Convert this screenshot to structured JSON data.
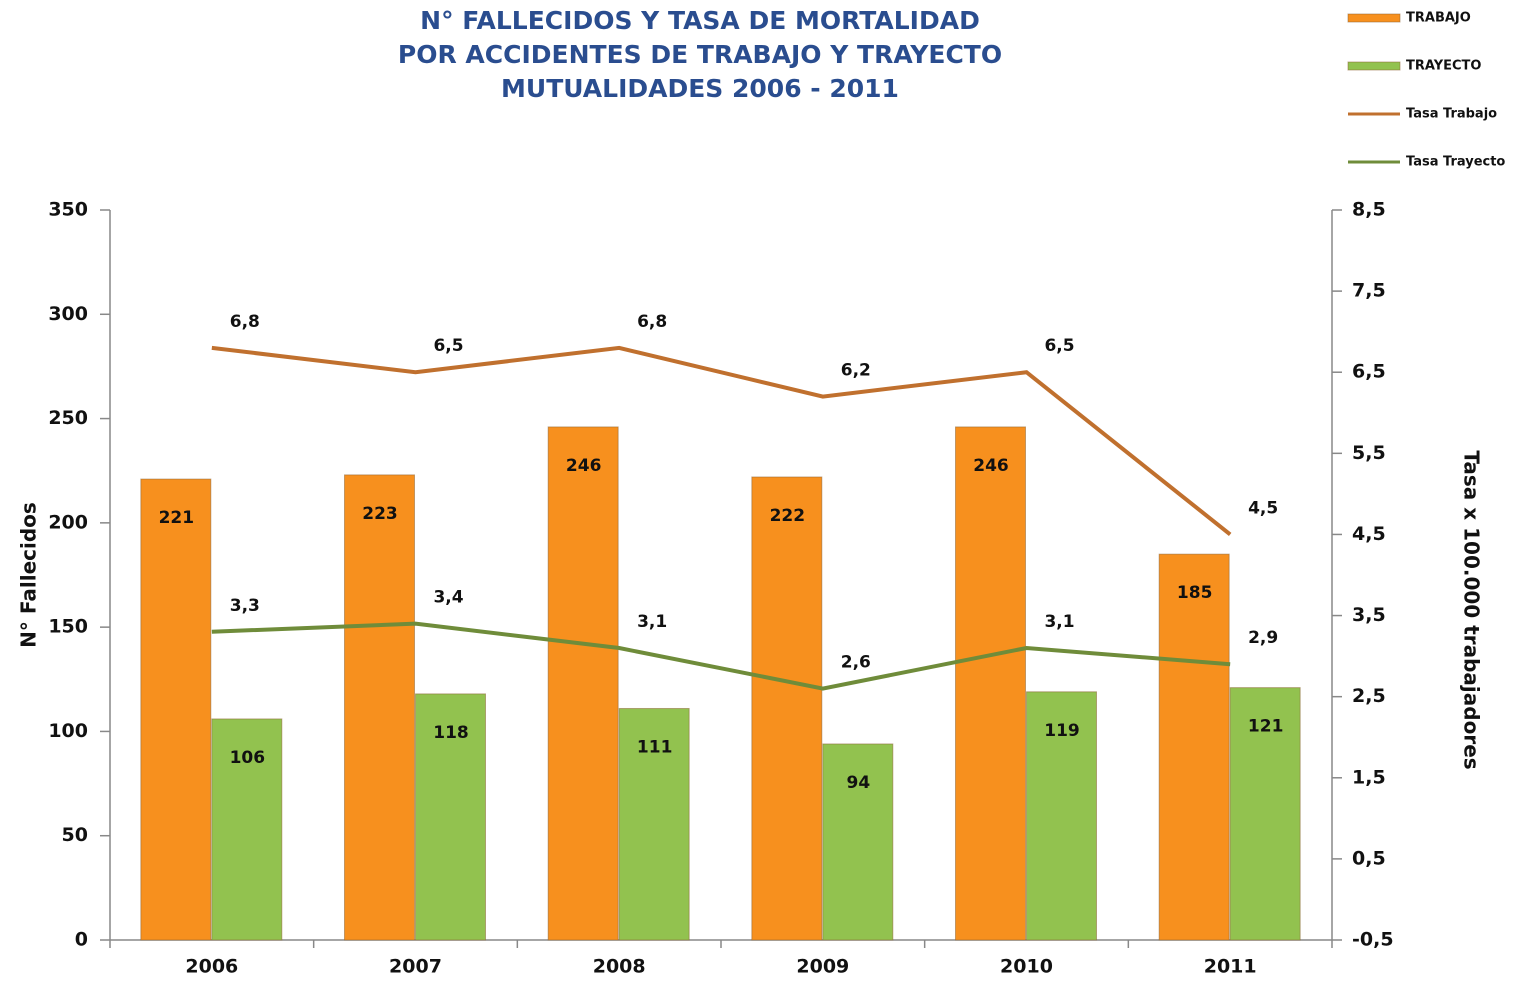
{
  "chart_data": {
    "type": "bar-line",
    "title": [
      "N° FALLECIDOS Y TASA DE MORTALIDAD",
      "POR ACCIDENTES DE TRABAJO Y TRAYECTO",
      "MUTUALIDADES 2006 - 2011"
    ],
    "ylabel": "N° Fallecidos",
    "y2label": "Tasa x 100.000 trabajadores",
    "categories": [
      "2006",
      "2007",
      "2008",
      "2009",
      "2010",
      "2011"
    ],
    "series": [
      {
        "name": "TRABAJO",
        "type": "bar",
        "color": "#f7901e",
        "values": [
          221,
          223,
          246,
          222,
          246,
          185
        ]
      },
      {
        "name": "TRAYECTO",
        "type": "bar",
        "color": "#92c24f",
        "values": [
          106,
          118,
          111,
          94,
          119,
          121
        ]
      },
      {
        "name": "Tasa Trabajo",
        "type": "line",
        "axis": "y2",
        "color": "#c0702e",
        "values": [
          6.8,
          6.5,
          6.8,
          6.2,
          6.5,
          4.5
        ],
        "value_labels": [
          "6,8",
          "6,5",
          "6,8",
          "6,2",
          "6,5",
          "4,5"
        ]
      },
      {
        "name": "Tasa Trayecto",
        "type": "line",
        "axis": "y2",
        "color": "#6f8c3a",
        "values": [
          3.3,
          3.4,
          3.1,
          2.6,
          3.1,
          2.9
        ],
        "value_labels": [
          "3,3",
          "3,4",
          "3,1",
          "2,6",
          "3,1",
          "2,9"
        ]
      }
    ],
    "ylim": [
      0,
      350
    ],
    "yticks": [
      0,
      50,
      100,
      150,
      200,
      250,
      300,
      350
    ],
    "y2lim": [
      -0.5,
      8.5
    ],
    "y2ticks": [
      {
        "value": -0.5,
        "label": "-0,5"
      },
      {
        "value": 0.5,
        "label": "0,5"
      },
      {
        "value": 1.5,
        "label": "1,5"
      },
      {
        "value": 2.5,
        "label": "2,5"
      },
      {
        "value": 3.5,
        "label": "3,5"
      },
      {
        "value": 4.5,
        "label": "4,5"
      },
      {
        "value": 5.5,
        "label": "5,5"
      },
      {
        "value": 6.5,
        "label": "6,5"
      },
      {
        "value": 7.5,
        "label": "7,5"
      },
      {
        "value": 8.5,
        "label": "8,5"
      }
    ],
    "legend": "top-right",
    "grid": false
  }
}
